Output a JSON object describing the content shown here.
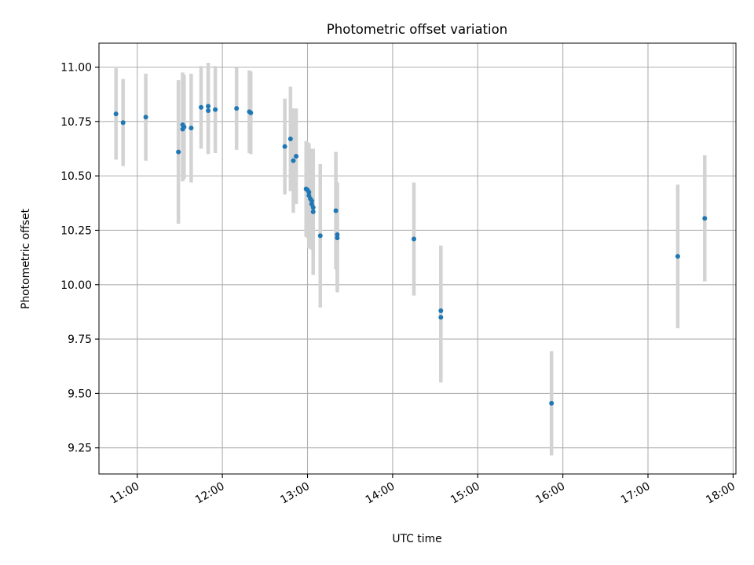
{
  "colors": {
    "point": "#1f77b4",
    "errorbar": "#d3d3d3",
    "grid": "#b0b0b0",
    "axis": "#000000",
    "background": "#ffffff"
  },
  "chart_data": {
    "type": "scatter",
    "title": "Photometric offset variation",
    "xlabel": "UTC time",
    "ylabel": "Photometric offset",
    "x_unit": "UTC time of day",
    "xlim": [
      "10:33",
      "18:02"
    ],
    "ylim": [
      9.13,
      11.11
    ],
    "x_ticks": [
      "11:00",
      "12:00",
      "13:00",
      "14:00",
      "15:00",
      "16:00",
      "17:00",
      "18:00"
    ],
    "y_ticks": [
      "9.25",
      "9.50",
      "9.75",
      "10.00",
      "10.25",
      "10.50",
      "10.75",
      "11.00"
    ],
    "grid": true,
    "legend": "none",
    "error_bars": "vertical",
    "series": [
      {
        "points": [
          {
            "x": "10:45",
            "y": 10.785,
            "err": 0.21
          },
          {
            "x": "10:50",
            "y": 10.745,
            "err": 0.2
          },
          {
            "x": "11:06",
            "y": 10.77,
            "err": 0.2
          },
          {
            "x": "11:29",
            "y": 10.61,
            "err": 0.33
          },
          {
            "x": "11:32",
            "y": 10.735,
            "err": 0.24
          },
          {
            "x": "11:32",
            "y": 10.715,
            "err": 0.24
          },
          {
            "x": "11:33",
            "y": 10.725,
            "err": 0.24
          },
          {
            "x": "11:38",
            "y": 10.72,
            "err": 0.25
          },
          {
            "x": "11:45",
            "y": 10.815,
            "err": 0.19
          },
          {
            "x": "11:50",
            "y": 10.82,
            "err": 0.2
          },
          {
            "x": "11:50",
            "y": 10.8,
            "err": 0.2
          },
          {
            "x": "11:55",
            "y": 10.805,
            "err": 0.2
          },
          {
            "x": "12:10",
            "y": 10.81,
            "err": 0.19
          },
          {
            "x": "12:19",
            "y": 10.795,
            "err": 0.19
          },
          {
            "x": "12:20",
            "y": 10.79,
            "err": 0.19
          },
          {
            "x": "12:44",
            "y": 10.635,
            "err": 0.22
          },
          {
            "x": "12:48",
            "y": 10.67,
            "err": 0.24
          },
          {
            "x": "12:50",
            "y": 10.57,
            "err": 0.24
          },
          {
            "x": "12:52",
            "y": 10.59,
            "err": 0.22
          },
          {
            "x": "12:59",
            "y": 10.44,
            "err": 0.22
          },
          {
            "x": "13:00",
            "y": 10.435,
            "err": 0.22
          },
          {
            "x": "13:01",
            "y": 10.425,
            "err": 0.22
          },
          {
            "x": "13:01",
            "y": 10.41,
            "err": 0.24
          },
          {
            "x": "13:02",
            "y": 10.395,
            "err": 0.23
          },
          {
            "x": "13:03",
            "y": 10.385,
            "err": 0.22
          },
          {
            "x": "13:03",
            "y": 10.37,
            "err": 0.21
          },
          {
            "x": "13:04",
            "y": 10.355,
            "err": 0.22
          },
          {
            "x": "13:04",
            "y": 10.335,
            "err": 0.29
          },
          {
            "x": "13:09",
            "y": 10.225,
            "err": 0.33
          },
          {
            "x": "13:20",
            "y": 10.34,
            "err": 0.27
          },
          {
            "x": "13:21",
            "y": 10.23,
            "err": 0.24
          },
          {
            "x": "13:21",
            "y": 10.215,
            "err": 0.25
          },
          {
            "x": "14:15",
            "y": 10.21,
            "err": 0.26
          },
          {
            "x": "14:34",
            "y": 9.88,
            "err": 0.3
          },
          {
            "x": "14:34",
            "y": 9.85,
            "err": 0.3
          },
          {
            "x": "15:52",
            "y": 9.455,
            "err": 0.24
          },
          {
            "x": "17:21",
            "y": 10.13,
            "err": 0.33
          },
          {
            "x": "17:40",
            "y": 10.305,
            "err": 0.29
          }
        ]
      }
    ]
  }
}
